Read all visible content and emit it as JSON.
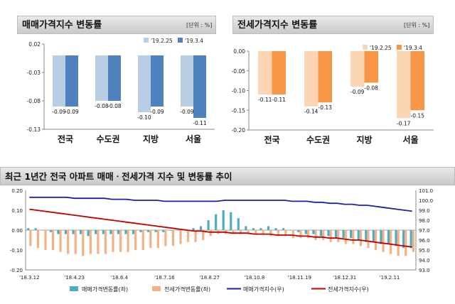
{
  "sale_panel": {
    "title": "매매가격지수 변동률",
    "unit": "[단위 : %]"
  },
  "jeonse_panel": {
    "title": "전세가격지수 변동률",
    "unit": "[단위 : %]"
  },
  "trend_panel": {
    "title": "최근 1년간 전국 아파트 매매ㆍ전세가격 지수 및 변동률 추이"
  },
  "colors": {
    "light_blue": "#b8cce4",
    "blue": "#4f81bd",
    "light_orange": "#fcd5b4",
    "orange": "#f79646",
    "trend_sale_bar": "#4bacc6",
    "trend_jeonse_bar": "#f4b183",
    "sale_index_line": "#1f1fa8",
    "jeonse_index_line": "#c00000"
  },
  "chart_data": [
    {
      "type": "bar",
      "title": "매매가격지수 변동률",
      "categories": [
        "전국",
        "수도권",
        "지방",
        "서울"
      ],
      "series": [
        {
          "name": "'19.2.25",
          "values": [
            -0.09,
            -0.08,
            -0.1,
            -0.09
          ],
          "labels": [
            "-0.09",
            "-0.08",
            "-0.10",
            "-0.09"
          ]
        },
        {
          "name": "'19.3.4",
          "values": [
            -0.09,
            -0.08,
            -0.09,
            -0.11
          ],
          "labels": [
            "-0.09",
            "-0.08",
            "-0.09",
            "-0.11"
          ]
        }
      ],
      "ylim": [
        -0.13,
        0.02
      ],
      "yticks": [
        0.02,
        -0.03,
        -0.08,
        -0.13
      ],
      "ytick_labels": [
        "0.02",
        "-0.03",
        "-0.08",
        "-0.13"
      ],
      "legend": "top-right"
    },
    {
      "type": "bar",
      "title": "전세가격지수 변동률",
      "categories": [
        "전국",
        "수도권",
        "지방",
        "서울"
      ],
      "series": [
        {
          "name": "'19.2.25",
          "values": [
            -0.11,
            -0.14,
            -0.09,
            -0.17
          ],
          "labels": [
            "-0.11",
            "-0.14",
            "-0.09",
            "-0.17"
          ]
        },
        {
          "name": "'19.3.4",
          "values": [
            -0.11,
            -0.13,
            -0.08,
            -0.15
          ],
          "labels": [
            "-0.11",
            "-0.13",
            "-0.08",
            "-0.15"
          ]
        }
      ],
      "ylim": [
        -0.2,
        0.0
      ],
      "yticks": [
        0.0,
        -0.05,
        -0.1,
        -0.15,
        -0.2
      ],
      "ytick_labels": [
        "0.00",
        "-0.05",
        "-0.10",
        "-0.15",
        "-0.20"
      ],
      "legend": "top-right"
    },
    {
      "type": "bar+line",
      "title": "최근 1년간 전국 아파트 매매ㆍ전세가격 지수 및 변동률 추이",
      "x_labels": [
        "'18.3.12",
        "'18.4.23",
        "'18.6.4",
        "'18.7.16",
        "'18.8.27",
        "'18.10.8",
        "'18.11.19",
        "'18.12.31",
        "'19.2.11"
      ],
      "x_label_weeks": [
        0,
        6,
        12,
        18,
        24,
        30,
        36,
        42,
        48
      ],
      "weeks": 52,
      "left_axis": {
        "ylim": [
          -0.2,
          0.2
        ],
        "ticks": [
          0.2,
          0.1,
          0.0,
          -0.1,
          -0.2
        ],
        "tick_labels": [
          "0.20",
          "0.10",
          "0.00",
          "-0.10",
          "-0.20"
        ]
      },
      "right_axis": {
        "ylim": [
          93.0,
          101.0
        ],
        "ticks": [
          101.0,
          100.0,
          99.0,
          98.0,
          97.0,
          96.0,
          95.0,
          94.0,
          93.0
        ],
        "tick_labels": [
          "101.0",
          "100.0",
          "99.0",
          "98.0",
          "97.0",
          "96.0",
          "95.0",
          "94.0",
          "93.0"
        ]
      },
      "bar_series": [
        {
          "name": "매매가격변동률(좌)",
          "axis": "left",
          "values": [
            0.01,
            0.01,
            0.0,
            -0.01,
            -0.02,
            -0.02,
            -0.02,
            -0.02,
            -0.03,
            -0.02,
            -0.02,
            -0.02,
            -0.02,
            -0.02,
            -0.02,
            -0.01,
            -0.01,
            -0.01,
            -0.01,
            0.0,
            0.0,
            0.0,
            0.01,
            0.02,
            0.05,
            0.08,
            0.1,
            0.09,
            0.06,
            0.02,
            0.01,
            0.01,
            0.02,
            0.01,
            0.01,
            0.0,
            -0.01,
            -0.02,
            -0.02,
            -0.03,
            -0.03,
            -0.04,
            -0.04,
            -0.04,
            -0.05,
            -0.06,
            -0.06,
            -0.07,
            -0.07,
            -0.08,
            -0.09,
            -0.09
          ]
        },
        {
          "name": "전세가격변동률(좌)",
          "axis": "left",
          "values": [
            -0.08,
            -0.09,
            -0.1,
            -0.1,
            -0.11,
            -0.12,
            -0.12,
            -0.13,
            -0.12,
            -0.12,
            -0.12,
            -0.11,
            -0.11,
            -0.11,
            -0.1,
            -0.1,
            -0.09,
            -0.09,
            -0.08,
            -0.08,
            -0.07,
            -0.06,
            -0.06,
            -0.05,
            -0.03,
            -0.02,
            -0.02,
            -0.02,
            -0.02,
            -0.02,
            -0.02,
            -0.02,
            -0.03,
            -0.03,
            -0.03,
            -0.04,
            -0.04,
            -0.04,
            -0.05,
            -0.05,
            -0.06,
            -0.06,
            -0.07,
            -0.07,
            -0.08,
            -0.09,
            -0.1,
            -0.11,
            -0.12,
            -0.13,
            -0.13,
            -0.11
          ]
        }
      ],
      "line_series": [
        {
          "name": "매매가격지수(우)",
          "axis": "right",
          "values": [
            100.3,
            100.3,
            100.3,
            100.3,
            100.3,
            100.3,
            100.2,
            100.2,
            100.2,
            100.2,
            100.2,
            100.1,
            100.1,
            100.1,
            100.0,
            100.0,
            100.0,
            100.0,
            99.9,
            99.9,
            99.9,
            99.9,
            99.9,
            99.9,
            99.9,
            99.9,
            100.0,
            100.0,
            100.0,
            100.0,
            100.0,
            100.0,
            100.0,
            100.0,
            100.0,
            99.9,
            99.9,
            99.9,
            99.8,
            99.8,
            99.7,
            99.7,
            99.6,
            99.6,
            99.5,
            99.5,
            99.4,
            99.3,
            99.2,
            99.1,
            99.0,
            98.9
          ]
        },
        {
          "name": "전세가격지수(우)",
          "axis": "right",
          "values": [
            99.1,
            99.0,
            98.9,
            98.8,
            98.7,
            98.6,
            98.5,
            98.4,
            98.3,
            98.2,
            98.1,
            98.0,
            97.9,
            97.8,
            97.7,
            97.6,
            97.5,
            97.4,
            97.3,
            97.2,
            97.1,
            97.0,
            96.9,
            96.9,
            96.8,
            96.8,
            96.8,
            96.7,
            96.7,
            96.7,
            96.6,
            96.6,
            96.6,
            96.5,
            96.5,
            96.5,
            96.4,
            96.4,
            96.3,
            96.3,
            96.2,
            96.2,
            96.1,
            96.0,
            96.0,
            95.9,
            95.8,
            95.7,
            95.6,
            95.5,
            95.4,
            95.3
          ]
        }
      ],
      "legend": "bottom"
    }
  ]
}
